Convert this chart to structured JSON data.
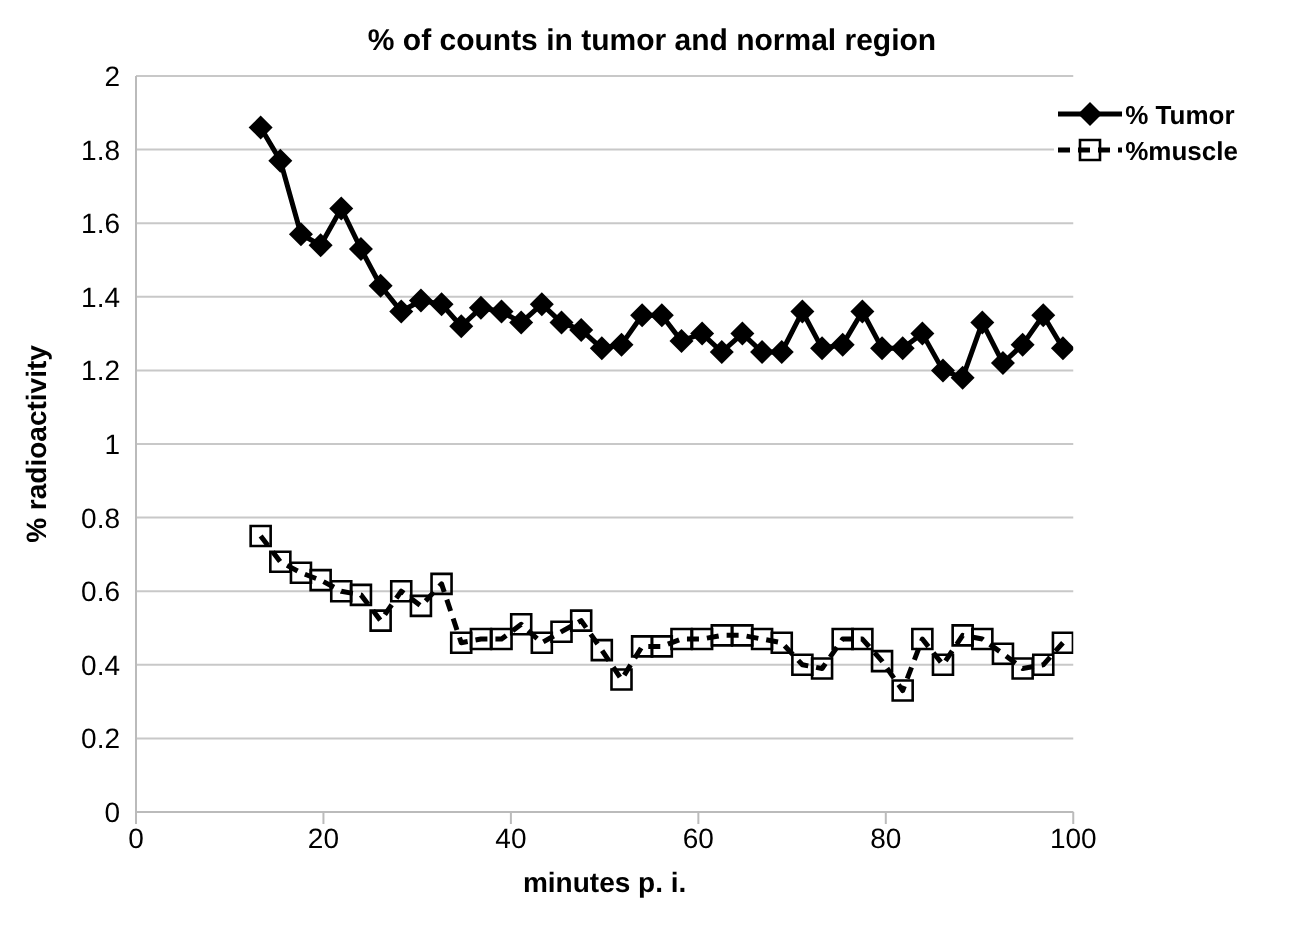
{
  "chart_data": {
    "type": "line",
    "title": "% of counts in tumor and normal region",
    "xlabel": "minutes p. i.",
    "ylabel": "% radioactivity",
    "x": [
      13.3,
      15.4,
      17.6,
      19.7,
      21.9,
      24.0,
      26.1,
      28.3,
      30.4,
      32.6,
      34.7,
      36.8,
      39.0,
      41.1,
      43.3,
      45.4,
      47.5,
      49.7,
      51.8,
      54.0,
      56.1,
      58.2,
      60.4,
      62.5,
      64.7,
      66.8,
      68.9,
      71.1,
      73.2,
      75.4,
      77.5,
      79.6,
      81.8,
      83.9,
      86.1,
      88.2,
      90.3,
      92.5,
      94.6,
      96.8,
      98.9
    ],
    "series": [
      {
        "name": "% Tumor",
        "color": "#000000",
        "marker": "diamond",
        "line_style": "solid",
        "values": [
          1.86,
          1.77,
          1.57,
          1.54,
          1.64,
          1.53,
          1.43,
          1.36,
          1.39,
          1.38,
          1.32,
          1.37,
          1.36,
          1.33,
          1.38,
          1.33,
          1.31,
          1.26,
          1.27,
          1.35,
          1.35,
          1.28,
          1.3,
          1.25,
          1.3,
          1.25,
          1.25,
          1.36,
          1.26,
          1.27,
          1.36,
          1.26,
          1.26,
          1.3,
          1.2,
          1.18,
          1.33,
          1.22,
          1.27,
          1.35,
          1.26
        ]
      },
      {
        "name": "%muscle",
        "color": "#000000",
        "marker": "square",
        "line_style": "dashed",
        "values": [
          0.75,
          0.68,
          0.65,
          0.63,
          0.6,
          0.59,
          0.52,
          0.6,
          0.56,
          0.62,
          0.46,
          0.47,
          0.47,
          0.51,
          0.46,
          0.49,
          0.52,
          0.44,
          0.36,
          0.45,
          0.45,
          0.47,
          0.47,
          0.48,
          0.48,
          0.47,
          0.46,
          0.4,
          0.39,
          0.47,
          0.47,
          0.41,
          0.33,
          0.47,
          0.4,
          0.48,
          0.47,
          0.43,
          0.39,
          0.4,
          0.46
        ]
      }
    ],
    "xlim": [
      0,
      100
    ],
    "xticks": [
      0,
      20,
      40,
      60,
      80,
      100
    ],
    "ylim": [
      0,
      2
    ],
    "yticks": [
      0,
      0.2,
      0.4,
      0.6,
      0.8,
      1,
      1.2,
      1.4,
      1.6,
      1.8,
      2
    ],
    "grid": "y",
    "legend": "top right"
  }
}
